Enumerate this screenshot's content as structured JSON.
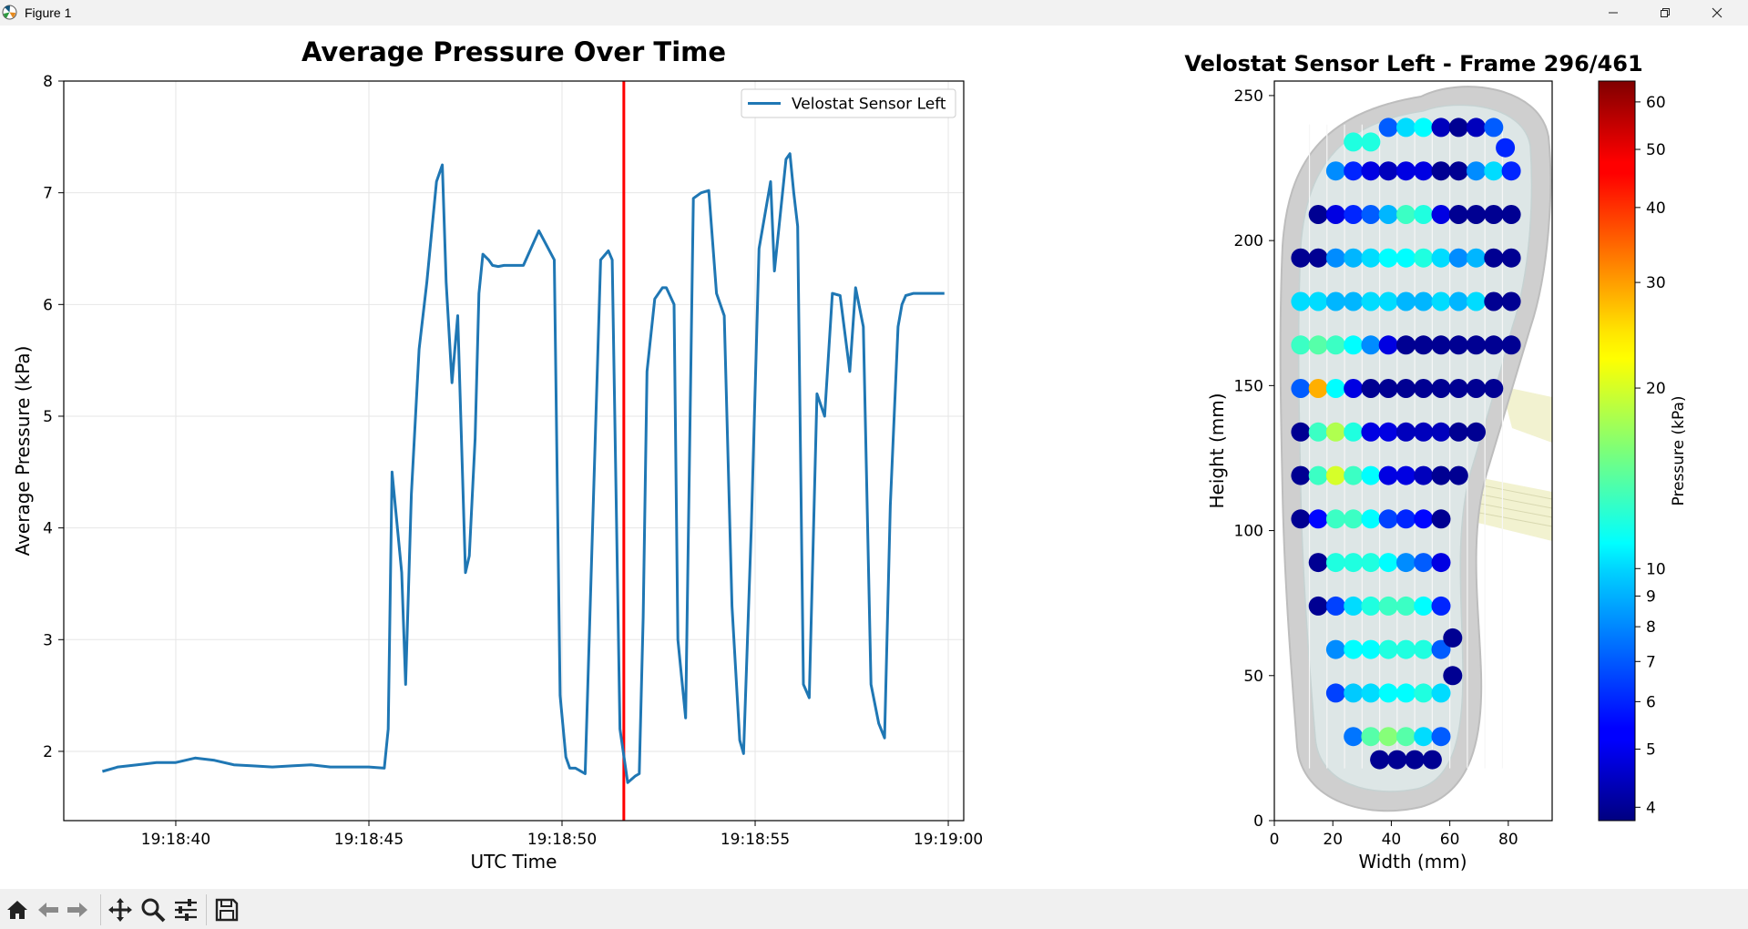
{
  "window": {
    "title": "Figure 1",
    "controls": [
      "minimize",
      "restore",
      "close"
    ]
  },
  "toolbar": {
    "buttons": [
      "home-icon",
      "back-icon",
      "forward-icon",
      "pan-icon",
      "zoom-icon",
      "configure-subplots-icon",
      "save-icon"
    ]
  },
  "chart_data": [
    {
      "type": "line",
      "title": "Average Pressure Over Time",
      "xlabel": "UTC Time",
      "ylabel": "Average Pressure (kPa)",
      "xlim": [
        "19:18:37.1",
        "19:19:00.4"
      ],
      "ylim": [
        1.38,
        8.0
      ],
      "x_ticks": [
        "19:18:40",
        "19:18:45",
        "19:18:50",
        "19:18:55",
        "19:19:00"
      ],
      "y_ticks": [
        2,
        3,
        4,
        5,
        6,
        7,
        8
      ],
      "grid": true,
      "legend": {
        "position": "top-right",
        "entries": [
          "Velostat Sensor Left"
        ]
      },
      "series": [
        {
          "name": "Velostat Sensor Left",
          "color": "#1f77b4",
          "x": [
            "19:18:38.1",
            "19:18:38.5",
            "19:18:39.0",
            "19:18:39.5",
            "19:18:40.0",
            "19:18:40.5",
            "19:18:41.0",
            "19:18:41.5",
            "19:18:42.0",
            "19:18:42.5",
            "19:18:43.0",
            "19:18:43.5",
            "19:18:44.0",
            "19:18:44.5",
            "19:18:45.0",
            "19:18:45.4",
            "19:18:45.5",
            "19:18:45.6",
            "19:18:45.85",
            "19:18:45.95",
            "19:18:46.1",
            "19:18:46.3",
            "19:18:46.5",
            "19:18:46.75",
            "19:18:46.9",
            "19:18:47.0",
            "19:18:47.15",
            "19:18:47.3",
            "19:18:47.5",
            "19:18:47.6",
            "19:18:47.75",
            "19:18:47.85",
            "19:18:47.95",
            "19:18:48.1",
            "19:18:48.2",
            "19:18:48.35",
            "19:18:48.5",
            "19:18:49.0",
            "19:18:49.4",
            "19:18:49.8",
            "19:18:49.95",
            "19:18:50.1",
            "19:18:50.2",
            "19:18:50.35",
            "19:18:50.6",
            "19:18:51.0",
            "19:18:51.2",
            "19:18:51.3",
            "19:18:51.5",
            "19:18:51.7",
            "19:18:51.9",
            "19:18:52.0",
            "19:18:52.1",
            "19:18:52.2",
            "19:18:52.4",
            "19:18:52.6",
            "19:18:52.7",
            "19:18:52.9",
            "19:18:53.0",
            "19:18:53.2",
            "19:18:53.4",
            "19:18:53.6",
            "19:18:53.8",
            "19:18:54.0",
            "19:18:54.2",
            "19:18:54.4",
            "19:18:54.6",
            "19:18:54.7",
            "19:18:54.9",
            "19:18:55.1",
            "19:18:55.4",
            "19:18:55.5",
            "19:18:55.8",
            "19:18:55.9",
            "19:18:56.0",
            "19:18:56.1",
            "19:18:56.25",
            "19:18:56.4",
            "19:18:56.6",
            "19:18:56.8",
            "19:18:57.0",
            "19:18:57.2",
            "19:18:57.45",
            "19:18:57.6",
            "19:18:57.8",
            "19:18:58.0",
            "19:18:58.2",
            "19:18:58.35",
            "19:18:58.5",
            "19:18:58.7",
            "19:18:58.8",
            "19:18:58.9",
            "19:18:59.1",
            "19:18:59.3",
            "19:18:59.5",
            "19:18:59.7",
            "19:18:59.9"
          ],
          "values": [
            1.82,
            1.86,
            1.88,
            1.9,
            1.9,
            1.94,
            1.92,
            1.88,
            1.87,
            1.86,
            1.87,
            1.88,
            1.86,
            1.86,
            1.86,
            1.85,
            2.2,
            4.5,
            3.6,
            2.6,
            4.3,
            5.6,
            6.2,
            7.1,
            7.25,
            6.2,
            5.3,
            5.9,
            3.6,
            3.75,
            4.8,
            6.1,
            6.45,
            6.4,
            6.35,
            6.34,
            6.35,
            6.35,
            6.66,
            6.4,
            2.5,
            1.95,
            1.85,
            1.85,
            1.8,
            6.4,
            6.48,
            6.4,
            2.2,
            1.72,
            1.78,
            1.8,
            3.2,
            5.4,
            6.05,
            6.15,
            6.15,
            6.0,
            3.0,
            2.3,
            6.95,
            7.0,
            7.02,
            6.1,
            5.9,
            3.3,
            2.1,
            1.98,
            4.0,
            6.5,
            7.1,
            6.3,
            7.3,
            7.35,
            7.0,
            6.7,
            2.6,
            2.48,
            5.2,
            5.0,
            6.1,
            6.08,
            5.4,
            6.15,
            5.8,
            2.6,
            2.25,
            2.12,
            4.2,
            5.8,
            6.0,
            6.08,
            6.1,
            6.1,
            6.1,
            6.1,
            6.1
          ]
        }
      ],
      "marker_line": {
        "x": "19:18:51.6",
        "color": "#ff0000"
      }
    },
    {
      "type": "scatter",
      "title": "Velostat Sensor Left - Frame 296/461",
      "xlabel": "Width (mm)",
      "ylabel": "Height (mm)",
      "xlim": [
        0,
        95
      ],
      "ylim": [
        0,
        255
      ],
      "x_ticks": [
        0,
        20,
        40,
        60,
        80
      ],
      "y_ticks": [
        0,
        50,
        100,
        150,
        200,
        250
      ],
      "colorbar": {
        "label": "Pressure (kPa)",
        "ticks": [
          4,
          5,
          6,
          7,
          8,
          9,
          10,
          20,
          30,
          40,
          50,
          60
        ],
        "range": [
          3.8,
          65
        ],
        "colormap": "jet",
        "scale": "log"
      },
      "rows": [
        {
          "y": 21,
          "x": [
            36,
            42,
            48,
            54
          ],
          "values": [
            4,
            4,
            4,
            4
          ]
        },
        {
          "y": 29,
          "x": [
            27,
            33,
            39,
            45,
            51,
            57
          ],
          "values": [
            7.5,
            14,
            16,
            14,
            10,
            7
          ]
        },
        {
          "y": 44,
          "x": [
            21,
            27,
            33,
            39,
            45,
            51,
            57
          ],
          "values": [
            6.5,
            9.5,
            10,
            11,
            11,
            12,
            10
          ]
        },
        {
          "y": 50,
          "x": [
            61
          ],
          "values": [
            4
          ]
        },
        {
          "y": 59,
          "x": [
            21,
            27,
            33,
            39,
            45,
            51,
            57
          ],
          "values": [
            8,
            11,
            11,
            12,
            12,
            12,
            7
          ]
        },
        {
          "y": 63,
          "x": [
            61
          ],
          "values": [
            4
          ]
        },
        {
          "y": 74,
          "x": [
            15,
            21,
            27,
            33,
            39,
            45,
            51,
            57
          ],
          "values": [
            4,
            6.5,
            10,
            12,
            13,
            13,
            11,
            6
          ]
        },
        {
          "y": 89,
          "x": [
            15,
            21,
            27,
            33,
            39,
            45,
            51,
            57
          ],
          "values": [
            4,
            12,
            12,
            12,
            11,
            8,
            7,
            5
          ]
        },
        {
          "y": 104,
          "x": [
            9,
            15,
            21,
            27,
            33,
            39,
            45,
            51,
            57
          ],
          "values": [
            4,
            5.5,
            13,
            13,
            11,
            6.5,
            6,
            5.5,
            4
          ]
        },
        {
          "y": 119,
          "x": [
            9,
            15,
            21,
            27,
            33,
            39,
            45,
            51,
            57,
            63
          ],
          "values": [
            4,
            13,
            20,
            13,
            11,
            5,
            5,
            4.5,
            4,
            4
          ]
        },
        {
          "y": 134,
          "x": [
            9,
            15,
            21,
            27,
            33,
            39,
            45,
            51,
            57,
            63,
            69
          ],
          "values": [
            4,
            13,
            18,
            12,
            5,
            5,
            4.5,
            4.5,
            4.5,
            4,
            4
          ]
        },
        {
          "y": 149,
          "x": [
            9,
            15,
            21,
            27,
            33,
            39,
            45,
            51,
            57,
            63,
            69,
            75
          ],
          "values": [
            7,
            28,
            11,
            5,
            4,
            4,
            4,
            4,
            4,
            4,
            4,
            4
          ]
        },
        {
          "y": 164,
          "x": [
            9,
            15,
            21,
            27,
            33,
            39,
            45,
            51,
            57,
            63,
            69,
            75,
            81
          ],
          "values": [
            13,
            14,
            13,
            11,
            8,
            5,
            4,
            4,
            4,
            4,
            4,
            4,
            4
          ]
        },
        {
          "y": 179,
          "x": [
            9,
            15,
            21,
            27,
            33,
            39,
            45,
            51,
            57,
            63,
            69,
            75,
            81
          ],
          "values": [
            10,
            10,
            9,
            9,
            10,
            10,
            9,
            9,
            10,
            9,
            10,
            4,
            4
          ]
        },
        {
          "y": 194,
          "x": [
            9,
            15,
            21,
            27,
            33,
            39,
            45,
            51,
            57,
            63,
            69,
            75,
            81
          ],
          "values": [
            4,
            4,
            8,
            9,
            10,
            11,
            11,
            12,
            10,
            8,
            9,
            4,
            4
          ]
        },
        {
          "y": 209,
          "x": [
            15,
            21,
            27,
            33,
            39,
            45,
            51,
            57,
            63,
            69,
            75,
            81
          ],
          "values": [
            4,
            5,
            6,
            7,
            9,
            13,
            12,
            5,
            4,
            4,
            4,
            4
          ]
        },
        {
          "y": 224,
          "x": [
            21,
            27,
            33,
            39,
            45,
            51,
            57,
            63,
            69,
            75,
            81
          ],
          "values": [
            8,
            6,
            5,
            4.5,
            5,
            5,
            4,
            4,
            8,
            10,
            6
          ]
        },
        {
          "y": 234,
          "x": [
            27,
            33
          ],
          "values": [
            12,
            12
          ]
        },
        {
          "y": 239,
          "x": [
            39,
            45,
            51,
            57,
            63,
            69,
            75
          ],
          "values": [
            7,
            10,
            11,
            4.5,
            4,
            4.5,
            7
          ]
        },
        {
          "y": 232,
          "x": [
            79
          ],
          "values": [
            6
          ]
        }
      ]
    }
  ]
}
